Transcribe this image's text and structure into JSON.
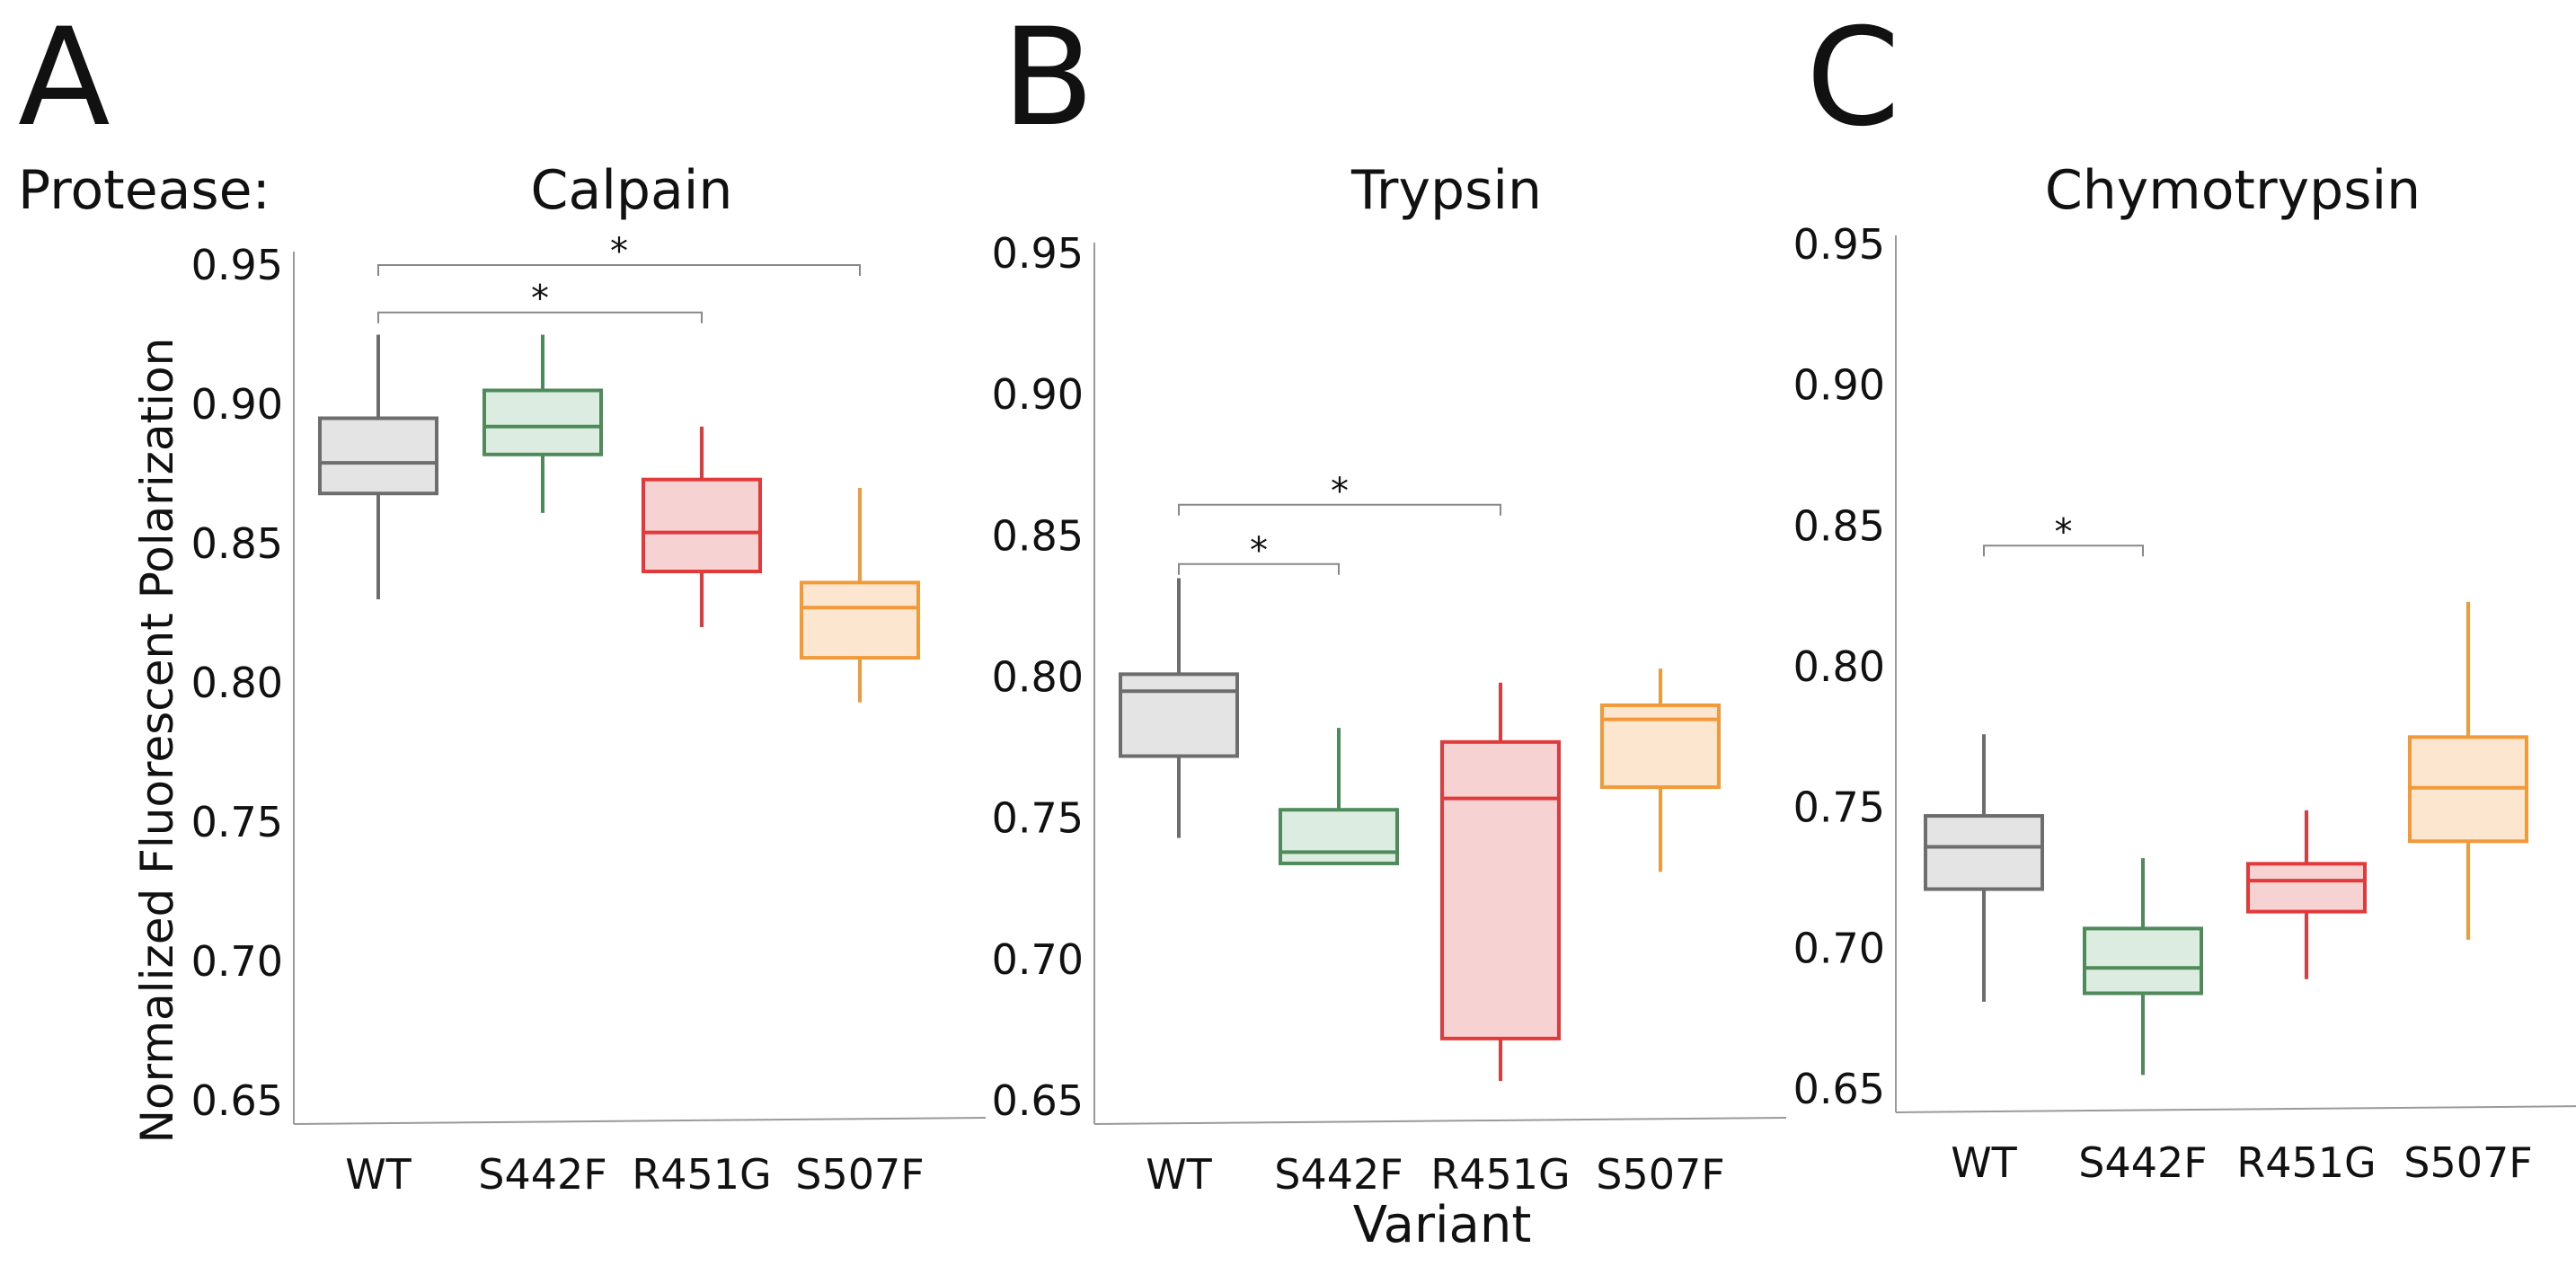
{
  "figure": {
    "protease_label": "Protease:",
    "ylabel": "Normalized Fluorescent Polarization",
    "xlabel": "Variant"
  },
  "chart_data": [
    {
      "type": "box",
      "panel_letter": "A",
      "title": "Calpain",
      "categories": [
        "WT",
        "S442F",
        "R451G",
        "S507F"
      ],
      "ylim": [
        0.65,
        0.95
      ],
      "yticks": [
        "0.65",
        "0.70",
        "0.75",
        "0.80",
        "0.85",
        "0.90",
        "0.95"
      ],
      "boxes": [
        {
          "name": "WT",
          "whisker_low": 0.83,
          "q1": 0.868,
          "median": 0.879,
          "q3": 0.895,
          "whisker_high": 0.925
        },
        {
          "name": "S442F",
          "whisker_low": 0.861,
          "q1": 0.882,
          "median": 0.892,
          "q3": 0.905,
          "whisker_high": 0.925
        },
        {
          "name": "R451G",
          "whisker_low": 0.82,
          "q1": 0.84,
          "median": 0.854,
          "q3": 0.873,
          "whisker_high": 0.892
        },
        {
          "name": "S507F",
          "whisker_low": 0.793,
          "q1": 0.809,
          "median": 0.827,
          "q3": 0.836,
          "whisker_high": 0.87
        }
      ],
      "significance": [
        {
          "from": "WT",
          "to": "R451G",
          "y": 0.933,
          "label": "*"
        },
        {
          "from": "WT",
          "to": "S507F",
          "y": 0.95,
          "label": "*"
        }
      ]
    },
    {
      "type": "box",
      "panel_letter": "B",
      "title": "Trypsin",
      "categories": [
        "WT",
        "S442F",
        "R451G",
        "S507F"
      ],
      "ylim": [
        0.65,
        0.95
      ],
      "yticks": [
        "0.65",
        "0.70",
        "0.75",
        "0.80",
        "0.85",
        "0.90",
        "0.95"
      ],
      "boxes": [
        {
          "name": "WT",
          "whisker_low": 0.743,
          "q1": 0.772,
          "median": 0.795,
          "q3": 0.801,
          "whisker_high": 0.835
        },
        {
          "name": "S442F",
          "whisker_low": 0.734,
          "q1": 0.734,
          "median": 0.738,
          "q3": 0.753,
          "whisker_high": 0.782
        },
        {
          "name": "R451G",
          "whisker_low": 0.657,
          "q1": 0.672,
          "median": 0.757,
          "q3": 0.777,
          "whisker_high": 0.798
        },
        {
          "name": "S507F",
          "whisker_low": 0.731,
          "q1": 0.761,
          "median": 0.785,
          "q3": 0.79,
          "whisker_high": 0.803
        }
      ],
      "significance": [
        {
          "from": "WT",
          "to": "S442F",
          "y": 0.84,
          "label": "*"
        },
        {
          "from": "WT",
          "to": "R451G",
          "y": 0.861,
          "label": "*"
        }
      ]
    },
    {
      "type": "box",
      "panel_letter": "C",
      "title": "Chymotrypsin",
      "categories": [
        "WT",
        "S442F",
        "R451G",
        "S507F"
      ],
      "ylim": [
        0.65,
        0.95
      ],
      "yticks": [
        "0.65",
        "0.70",
        "0.75",
        "0.80",
        "0.85",
        "0.90",
        "0.95"
      ],
      "boxes": [
        {
          "name": "WT",
          "whisker_low": 0.681,
          "q1": 0.721,
          "median": 0.736,
          "q3": 0.747,
          "whisker_high": 0.776
        },
        {
          "name": "S442F",
          "whisker_low": 0.655,
          "q1": 0.684,
          "median": 0.693,
          "q3": 0.707,
          "whisker_high": 0.732
        },
        {
          "name": "R451G",
          "whisker_low": 0.689,
          "q1": 0.713,
          "median": 0.724,
          "q3": 0.73,
          "whisker_high": 0.749
        },
        {
          "name": "S507F",
          "whisker_low": 0.703,
          "q1": 0.738,
          "median": 0.757,
          "q3": 0.775,
          "whisker_high": 0.823
        }
      ],
      "significance": [
        {
          "from": "WT",
          "to": "S442F",
          "y": 0.843,
          "label": "*"
        }
      ]
    }
  ],
  "colors": {
    "WT": {
      "stroke": "#6d6d6d",
      "fill": "#e4e4e4"
    },
    "S442F": {
      "stroke": "#4f8a5b",
      "fill": "#dcece0"
    },
    "R451G": {
      "stroke": "#e23a3a",
      "fill": "#f7d2d2"
    },
    "S507F": {
      "stroke": "#f29a3a",
      "fill": "#fde6d0"
    },
    "axis": "#9a9a9a",
    "bracket": "#888888",
    "text": "#111111"
  }
}
